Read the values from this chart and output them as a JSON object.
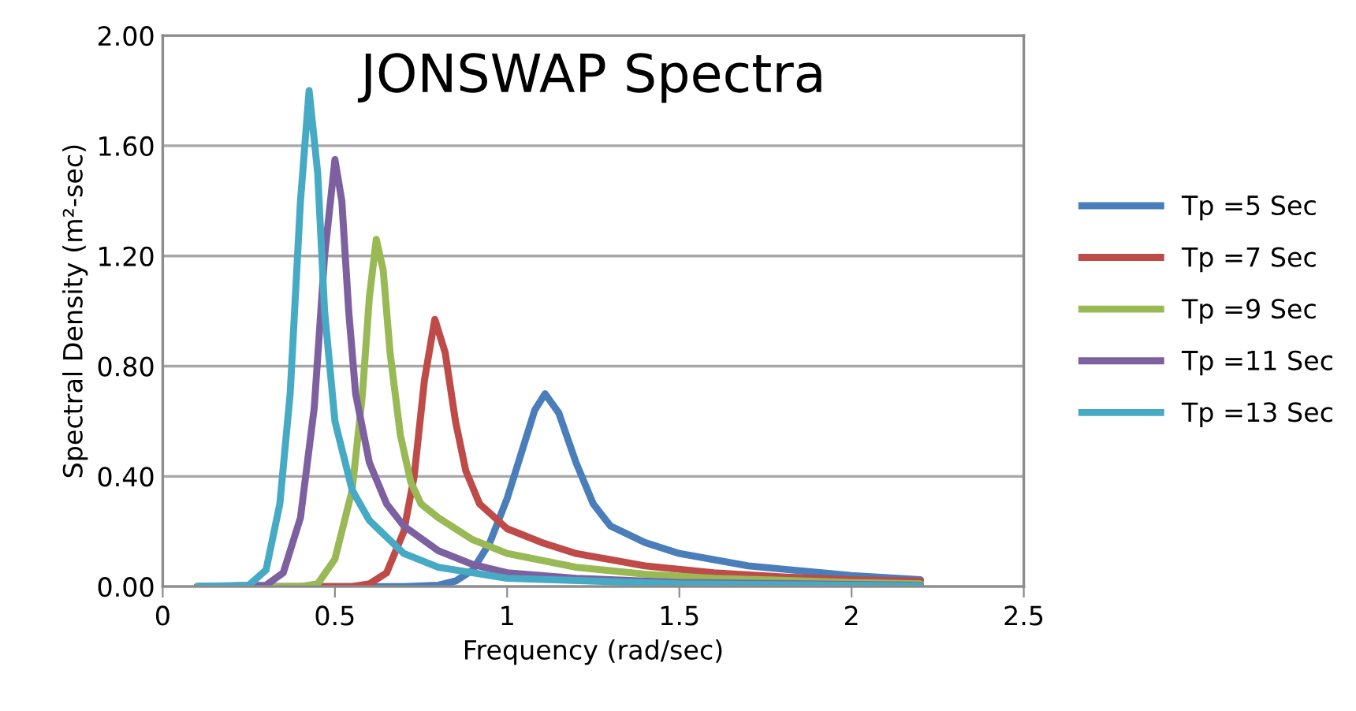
{
  "chart_data": {
    "type": "line",
    "title": "JONSWAP Spectra",
    "xlabel": "Frequency (rad/sec)",
    "ylabel": "Spectral Density (m²-sec)",
    "xlim": [
      0,
      2.5
    ],
    "xticks": [
      0,
      0.5,
      1,
      1.5,
      2,
      2.5
    ],
    "ylim": [
      0,
      2.0
    ],
    "yticks": [
      {
        "value": 0,
        "label": "0.00"
      },
      {
        "value": 0.4,
        "label": "0.40"
      },
      {
        "value": 0.8,
        "label": "0.80"
      },
      {
        "value": 1.2,
        "label": "1.20"
      },
      {
        "value": 1.6,
        "label": "1.60"
      },
      {
        "value": 2.0,
        "label": "2.00"
      }
    ],
    "grid": "y",
    "legend": "right",
    "marker": "none",
    "line_style": "solid",
    "series": [
      {
        "name": "Tp =5 Sec",
        "color": "#4a7ebb",
        "x": [
          0.1,
          0.7,
          0.8,
          0.85,
          0.9,
          0.95,
          1.0,
          1.05,
          1.08,
          1.11,
          1.15,
          1.2,
          1.25,
          1.3,
          1.4,
          1.5,
          1.7,
          2.0,
          2.2
        ],
        "values": [
          0,
          0,
          0.005,
          0.02,
          0.06,
          0.16,
          0.32,
          0.52,
          0.64,
          0.7,
          0.63,
          0.45,
          0.3,
          0.22,
          0.16,
          0.12,
          0.075,
          0.04,
          0.025
        ]
      },
      {
        "name": "Tp =7 Sec",
        "color": "#be4b48",
        "x": [
          0.1,
          0.55,
          0.6,
          0.65,
          0.7,
          0.73,
          0.76,
          0.79,
          0.82,
          0.85,
          0.88,
          0.92,
          1.0,
          1.1,
          1.2,
          1.4,
          1.6,
          1.8,
          2.0,
          2.2
        ],
        "values": [
          0,
          0,
          0.01,
          0.05,
          0.2,
          0.4,
          0.75,
          0.97,
          0.85,
          0.6,
          0.42,
          0.3,
          0.21,
          0.16,
          0.12,
          0.075,
          0.05,
          0.035,
          0.025,
          0.02
        ]
      },
      {
        "name": "Tp =9 Sec",
        "color": "#98b954",
        "x": [
          0.1,
          0.4,
          0.45,
          0.5,
          0.55,
          0.58,
          0.6,
          0.62,
          0.64,
          0.66,
          0.69,
          0.72,
          0.75,
          0.8,
          0.9,
          1.0,
          1.2,
          1.4,
          1.6,
          2.0,
          2.2
        ],
        "values": [
          0,
          0,
          0.01,
          0.1,
          0.35,
          0.7,
          1.05,
          1.26,
          1.15,
          0.85,
          0.55,
          0.38,
          0.3,
          0.25,
          0.17,
          0.12,
          0.07,
          0.045,
          0.03,
          0.015,
          0.01
        ]
      },
      {
        "name": "Tp =11 Sec",
        "color": "#7d60a0",
        "x": [
          0.1,
          0.3,
          0.35,
          0.4,
          0.44,
          0.47,
          0.5,
          0.52,
          0.54,
          0.56,
          0.6,
          0.65,
          0.7,
          0.8,
          0.9,
          1.0,
          1.2,
          1.5,
          2.2
        ],
        "values": [
          0,
          0.005,
          0.05,
          0.25,
          0.65,
          1.2,
          1.55,
          1.4,
          1.0,
          0.7,
          0.45,
          0.3,
          0.22,
          0.13,
          0.08,
          0.05,
          0.03,
          0.015,
          0.005
        ]
      },
      {
        "name": "Tp =13 Sec",
        "color": "#46aac5",
        "x": [
          0.1,
          0.25,
          0.3,
          0.34,
          0.37,
          0.4,
          0.425,
          0.45,
          0.47,
          0.5,
          0.55,
          0.6,
          0.7,
          0.8,
          1.0,
          1.5,
          2.2
        ],
        "values": [
          0,
          0.005,
          0.06,
          0.3,
          0.7,
          1.4,
          1.8,
          1.5,
          1.0,
          0.6,
          0.35,
          0.24,
          0.12,
          0.07,
          0.03,
          0.01,
          0.003
        ]
      }
    ]
  }
}
